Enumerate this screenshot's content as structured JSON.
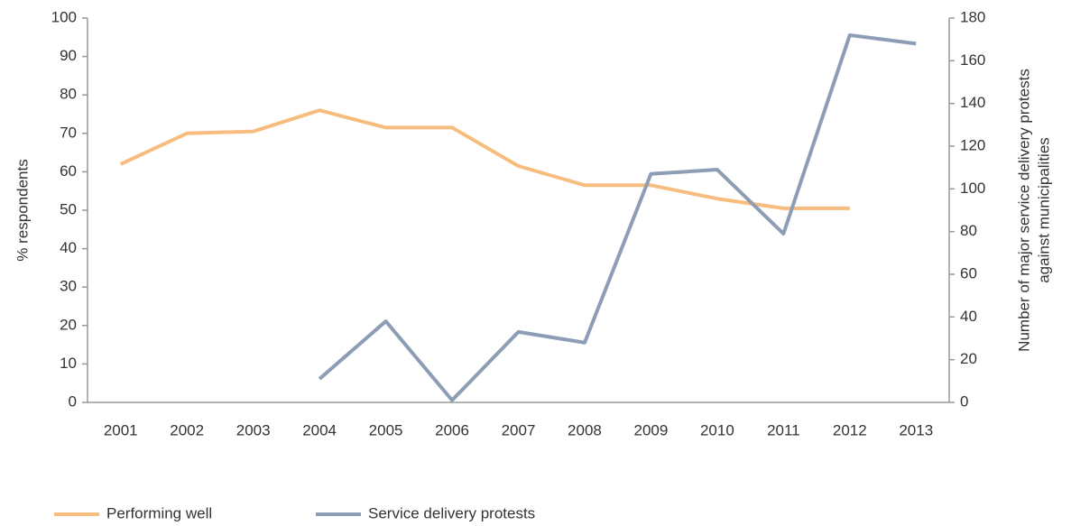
{
  "chart_data": {
    "type": "line",
    "categories": [
      "2001",
      "2002",
      "2003",
      "2004",
      "2005",
      "2006",
      "2007",
      "2008",
      "2009",
      "2010",
      "2011",
      "2012",
      "2013"
    ],
    "series": [
      {
        "name": "Performing well",
        "color": "#f7bd7f",
        "values": [
          62,
          70,
          70.5,
          76,
          71.5,
          71.5,
          61.5,
          56.5,
          56.5,
          53,
          50.5,
          50.5,
          null
        ]
      },
      {
        "name": "Service delivery protests",
        "color": "#8c9db5",
        "axis": "y2",
        "values": [
          null,
          null,
          null,
          11,
          38,
          1,
          33,
          28,
          107,
          109,
          79,
          172,
          168
        ]
      }
    ],
    "ylabel": "% respondents",
    "y2label": [
      "Number of major service delivery protests",
      "against municipalities"
    ],
    "ylim": [
      0,
      100
    ],
    "yticks": [
      0,
      10,
      20,
      30,
      40,
      50,
      60,
      70,
      80,
      90,
      100
    ],
    "y2lim": [
      0,
      180
    ],
    "y2ticks": [
      0,
      20,
      40,
      60,
      80,
      100,
      120,
      140,
      160,
      180
    ],
    "legend": "bottom-left"
  }
}
